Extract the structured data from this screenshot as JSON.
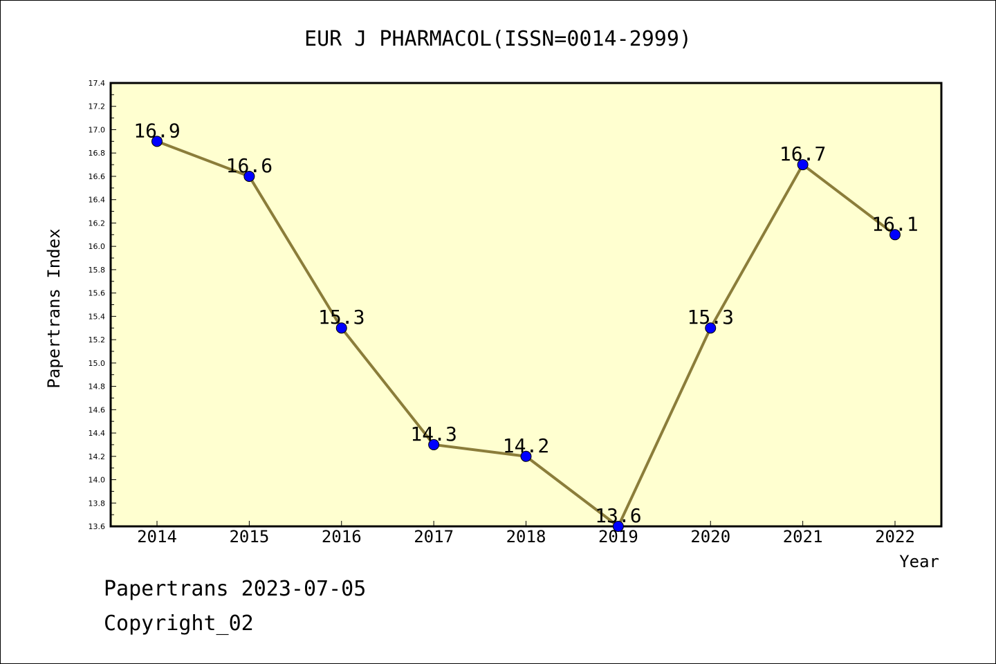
{
  "chart_data": {
    "type": "line",
    "title": "EUR J PHARMACOL(ISSN=0014-2999)",
    "xlabel": "Year",
    "ylabel": "Papertrans Index",
    "x": [
      "2014",
      "2015",
      "2016",
      "2017",
      "2018",
      "2019",
      "2020",
      "2021",
      "2022"
    ],
    "series": [
      {
        "values": [
          16.9,
          16.6,
          15.3,
          14.3,
          14.2,
          13.6,
          15.3,
          16.7,
          16.1
        ],
        "labels": [
          "16.9",
          "16.6",
          "15.3",
          "14.3",
          "14.2",
          "13.6",
          "15.3",
          "16.7",
          "16.1"
        ]
      }
    ],
    "ylim": [
      13.6,
      17.4
    ],
    "yticks": [
      "13.6",
      "13.8",
      "14.0",
      "14.2",
      "14.4",
      "14.6",
      "14.8",
      "15.0",
      "15.2",
      "15.4",
      "15.6",
      "15.8",
      "16.0",
      "16.2",
      "16.4",
      "16.6",
      "16.8",
      "17.0",
      "17.2",
      "17.4"
    ],
    "grid": false,
    "colors": {
      "plot_background": "#ffffd0",
      "line": "#8b7d3a",
      "marker": "#0000ff"
    }
  },
  "footer": {
    "line1": "Papertrans 2023-07-05",
    "line2": "Copyright_02"
  }
}
